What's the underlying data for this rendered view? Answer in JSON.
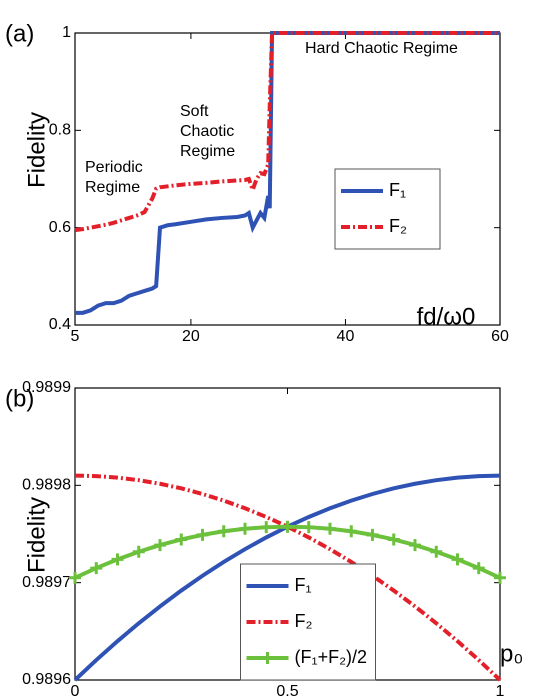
{
  "chart_data": [
    {
      "type": "line",
      "panel_label": "(a)",
      "ylabel": "Fidelity",
      "xlabel": "fd/ω0",
      "x": [
        5,
        6,
        7,
        8,
        9,
        10,
        11,
        12,
        13,
        14,
        15,
        15.5,
        16,
        17,
        18,
        20,
        22,
        24,
        26,
        27,
        27.5,
        28,
        28.5,
        29,
        29.5,
        30,
        30.2,
        30.5,
        35,
        40,
        45,
        50,
        55,
        60
      ],
      "series": [
        {
          "name": "F₁",
          "color": "#2f52b5",
          "linestyle": "solid",
          "values": [
            0.425,
            0.425,
            0.43,
            0.44,
            0.445,
            0.445,
            0.45,
            0.46,
            0.465,
            0.47,
            0.475,
            0.48,
            0.6,
            0.605,
            0.607,
            0.612,
            0.617,
            0.62,
            0.622,
            0.625,
            0.63,
            0.6,
            0.615,
            0.63,
            0.62,
            0.665,
            0.64,
            1,
            1,
            1,
            1,
            1,
            1,
            1
          ]
        },
        {
          "name": "F₂",
          "color": "#e3202a",
          "linestyle": "dashdot",
          "values": [
            0.595,
            0.597,
            0.6,
            0.603,
            0.606,
            0.61,
            0.615,
            0.62,
            0.625,
            0.632,
            0.66,
            0.68,
            0.683,
            0.685,
            0.687,
            0.69,
            0.692,
            0.695,
            0.697,
            0.698,
            0.7,
            0.678,
            0.7,
            0.712,
            0.71,
            0.73,
            0.85,
            1,
            1,
            1,
            1,
            1,
            1,
            1
          ]
        }
      ],
      "annotations": [
        [
          "Periodic",
          "Regime"
        ],
        [
          "Soft",
          "Chaotic",
          "Regime"
        ],
        [
          "Hard Chaotic Regime"
        ]
      ],
      "xlim": [
        5,
        60
      ],
      "xticks": [
        5,
        20,
        40,
        60
      ],
      "ylim": [
        0.4,
        1
      ],
      "yticks": [
        0.4,
        0.6,
        0.8,
        1
      ],
      "legend": "center right"
    },
    {
      "type": "line",
      "panel_label": "(b)",
      "ylabel": "Fidelity",
      "xlabel": "p₀",
      "x": [
        0,
        0.05,
        0.1,
        0.15,
        0.2,
        0.25,
        0.3,
        0.35,
        0.4,
        0.45,
        0.5,
        0.55,
        0.6,
        0.65,
        0.7,
        0.75,
        0.8,
        0.85,
        0.9,
        0.95,
        1
      ],
      "series": [
        {
          "name": "F₁",
          "color": "#2f52b5",
          "linestyle": "solid",
          "values": [
            0.9896,
            0.9896205,
            0.9896399,
            0.9896583,
            0.9896756,
            0.9896919,
            0.9897071,
            0.9897213,
            0.9897344,
            0.9897465,
            0.9897575,
            0.9897675,
            0.9897764,
            0.9897843,
            0.9897911,
            0.9897969,
            0.9898016,
            0.9898053,
            0.9898079,
            0.9898095,
            0.98981
          ]
        },
        {
          "name": "F₂",
          "color": "#e3202a",
          "linestyle": "dashdot",
          "values": [
            0.98981,
            0.9898095,
            0.9898079,
            0.9898053,
            0.9898016,
            0.9897969,
            0.9897911,
            0.9897843,
            0.9897764,
            0.9897675,
            0.9897575,
            0.9897465,
            0.9897344,
            0.9897213,
            0.9897071,
            0.9896919,
            0.9896756,
            0.9896583,
            0.9896399,
            0.9896205,
            0.9896
          ]
        },
        {
          "name": "(F₁+F₂)/2",
          "color": "#6cc13c",
          "linestyle": "solid",
          "marker": "+",
          "values": [
            0.989705,
            0.989715,
            0.9897239,
            0.9897318,
            0.9897386,
            0.9897444,
            0.9897491,
            0.9897528,
            0.9897554,
            0.989757,
            0.9897575,
            0.989757,
            0.9897554,
            0.9897528,
            0.9897491,
            0.9897444,
            0.9897386,
            0.9897318,
            0.9897239,
            0.989715,
            0.989705
          ]
        }
      ],
      "xlim": [
        0,
        1
      ],
      "xticks": [
        0,
        0.5,
        1
      ],
      "ylim": [
        0.9896,
        0.9899
      ],
      "yticks": [
        0.9896,
        0.9897,
        0.9898,
        0.9899
      ],
      "legend": "lower center"
    }
  ]
}
